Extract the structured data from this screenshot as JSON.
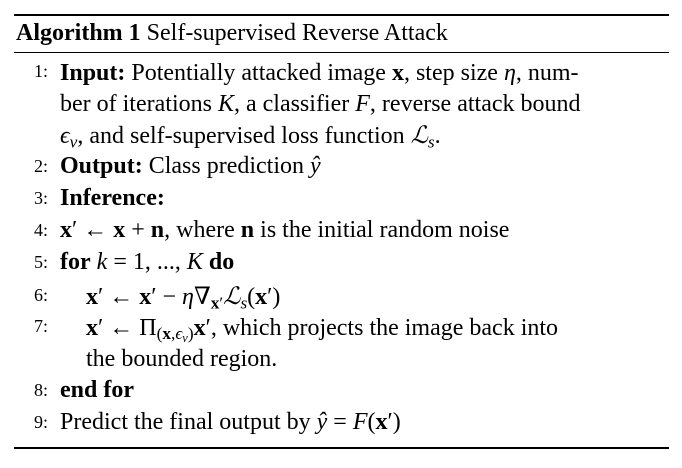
{
  "algorithm": {
    "label": "Algorithm 1",
    "title": "Self-supervised Reverse Attack"
  },
  "steps": [
    {
      "num": "1:",
      "keyword": "Input:",
      "lines": [
        "Potentially attacked image x, step size η, num-",
        "ber of iterations K, a classifier F, reverse attack bound",
        "ϵ_v, and self-supervised loss function ℒ_s."
      ]
    },
    {
      "num": "2:",
      "keyword": "Output:",
      "text": "Class prediction ŷ"
    },
    {
      "num": "3:",
      "keyword": "Inference:",
      "text": ""
    },
    {
      "num": "4:",
      "text": "x′ ← x + n, where n is the initial random noise"
    },
    {
      "num": "5:",
      "keyword": "for",
      "text": "k = 1, ..., K",
      "keyword2": "do"
    },
    {
      "num": "6:",
      "text": "x′ ← x′ − η∇_x′ ℒ_s(x′)"
    },
    {
      "num": "7:",
      "lines": [
        "x′ ← Π_(x,ϵ_v) x′, which projects the image back into",
        "the bounded region."
      ]
    },
    {
      "num": "8:",
      "keyword": "end for"
    },
    {
      "num": "9:",
      "text": "Predict the final output by ŷ = F(x′)"
    }
  ]
}
